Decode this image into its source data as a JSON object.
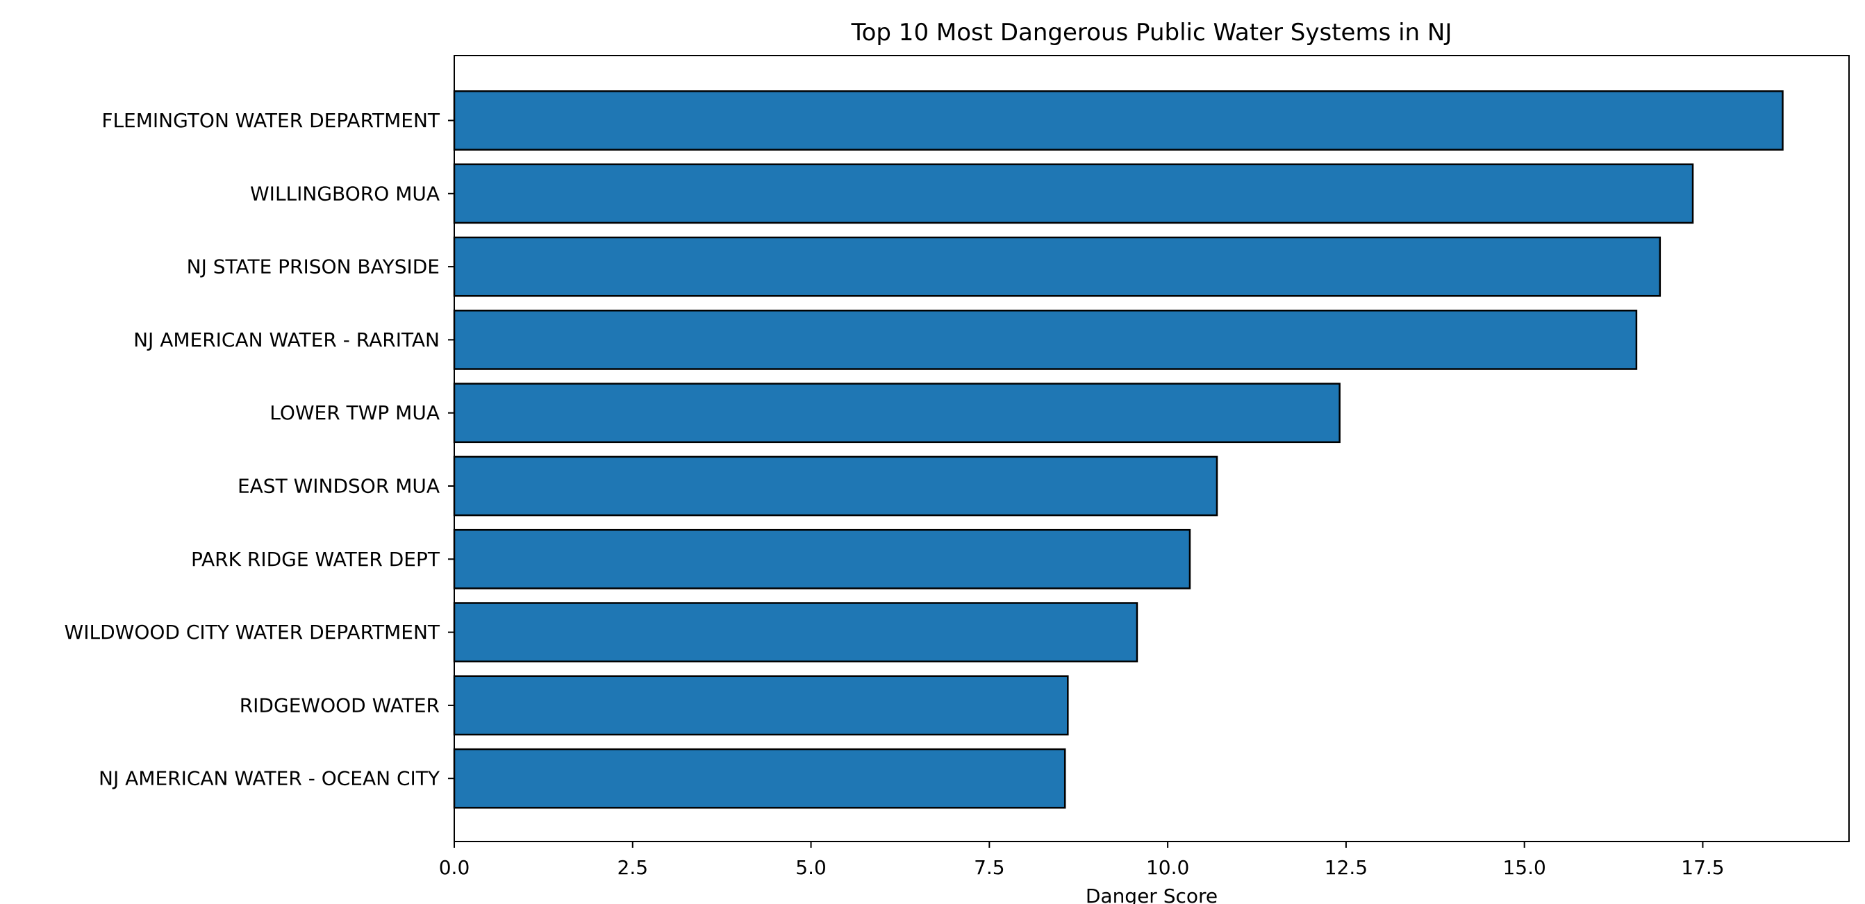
{
  "chart_data": {
    "type": "bar",
    "orientation": "horizontal",
    "title": "Top 10 Most Dangerous Public Water Systems in NJ",
    "xlabel": "Danger Score",
    "ylabel": "",
    "xlim": [
      0,
      19.55
    ],
    "xticks": [
      0,
      2.5,
      5,
      7.5,
      10,
      12.5,
      15,
      17.5
    ],
    "xtick_labels": [
      "0.0",
      "2.5",
      "5.0",
      "7.5",
      "10.0",
      "12.5",
      "15.0",
      "17.5"
    ],
    "categories": [
      "FLEMINGTON WATER DEPARTMENT",
      "WILLINGBORO MUA",
      "NJ STATE PRISON BAYSIDE",
      "NJ AMERICAN WATER - RARITAN",
      "LOWER TWP MUA",
      "EAST WINDSOR MUA",
      "PARK RIDGE WATER DEPT",
      "WILDWOOD CITY WATER DEPARTMENT",
      "RIDGEWOOD WATER",
      "NJ AMERICAN WATER - OCEAN CITY"
    ],
    "values": [
      18.62,
      17.36,
      16.9,
      16.57,
      12.41,
      10.69,
      10.31,
      9.57,
      8.6,
      8.56
    ],
    "bar_color": "#1f77b4",
    "bar_edge_color": "#000000",
    "grid": false,
    "legend": "none"
  }
}
